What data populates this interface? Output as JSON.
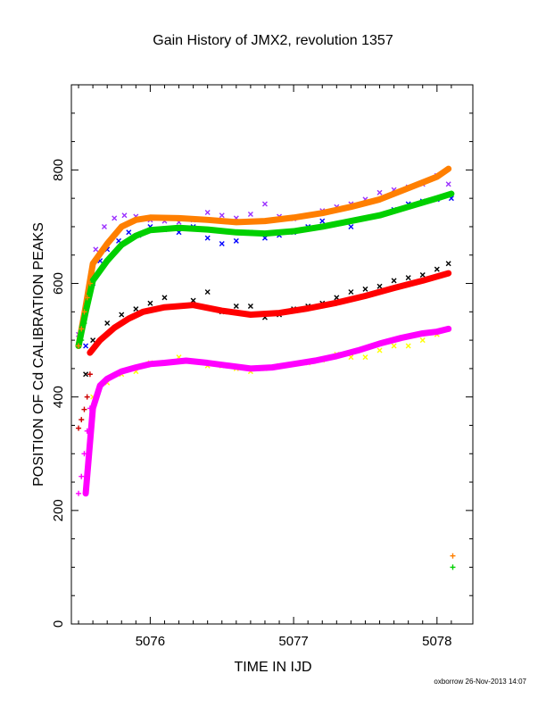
{
  "chart_data": {
    "type": "scatter",
    "title": "Gain History of JMX2, revolution 1357",
    "xlabel": "TIME IN IJD",
    "ylabel": "POSITION OF Cd CALIBRATION PEAKS",
    "xlim": [
      5075.45,
      5078.25
    ],
    "ylim": [
      0,
      950
    ],
    "xticks": [
      5076,
      5077,
      5078
    ],
    "yticks": [
      0,
      200,
      400,
      600,
      800
    ],
    "xtick_labels": [
      "5076",
      "5077",
      "5078"
    ],
    "ytick_labels": [
      "0",
      "200",
      "400",
      "600",
      "800"
    ],
    "grid": false,
    "legend": "none",
    "series": [
      {
        "color": "#9b30ff",
        "marker": "x",
        "x": [
          5075.5,
          5075.56,
          5075.62,
          5075.68,
          5075.75,
          5075.82,
          5075.9,
          5076.0,
          5076.1,
          5076.2,
          5076.3,
          5076.4,
          5076.5,
          5076.6,
          5076.7,
          5076.8,
          5076.9,
          5077.0,
          5077.1,
          5077.2,
          5077.3,
          5077.4,
          5077.5,
          5077.6,
          5077.7,
          5077.8,
          5077.9,
          5078.0,
          5078.08
        ],
        "y": [
          510,
          560,
          660,
          700,
          715,
          720,
          718,
          712,
          710,
          708,
          712,
          725,
          720,
          715,
          722,
          740,
          718,
          714,
          720,
          728,
          735,
          740,
          748,
          760,
          765,
          770,
          775,
          790,
          775
        ]
      },
      {
        "color": "#0000ff",
        "marker": "x",
        "x": [
          5075.55,
          5075.6,
          5075.65,
          5075.7,
          5075.78,
          5075.85,
          5075.92,
          5076.0,
          5076.1,
          5076.2,
          5076.3,
          5076.4,
          5076.5,
          5076.6,
          5076.7,
          5076.8,
          5076.9,
          5077.0,
          5077.1,
          5077.2,
          5077.3,
          5077.4,
          5077.5,
          5077.6,
          5077.7,
          5077.8,
          5077.9,
          5078.0,
          5078.1
        ],
        "y": [
          490,
          600,
          640,
          660,
          675,
          690,
          685,
          700,
          695,
          690,
          700,
          680,
          670,
          675,
          690,
          680,
          685,
          690,
          700,
          710,
          705,
          700,
          715,
          720,
          730,
          740,
          745,
          748,
          750
        ]
      },
      {
        "color": "#ff7f00",
        "marker": "line",
        "x": [
          5075.5,
          5075.55,
          5075.6,
          5075.7,
          5075.8,
          5075.9,
          5076.0,
          5076.2,
          5076.4,
          5076.6,
          5076.8,
          5077.0,
          5077.2,
          5077.4,
          5077.6,
          5077.8,
          5078.0,
          5078.08
        ],
        "y": [
          490,
          560,
          635,
          670,
          700,
          712,
          716,
          715,
          712,
          708,
          710,
          716,
          724,
          735,
          748,
          768,
          788,
          802
        ]
      },
      {
        "color": "#00d000",
        "marker": "line",
        "x": [
          5075.5,
          5075.55,
          5075.6,
          5075.7,
          5075.8,
          5075.9,
          5076.0,
          5076.2,
          5076.4,
          5076.6,
          5076.8,
          5077.0,
          5077.2,
          5077.4,
          5077.6,
          5077.8,
          5078.0,
          5078.1
        ],
        "y": [
          490,
          550,
          605,
          640,
          668,
          684,
          694,
          698,
          695,
          690,
          688,
          692,
          700,
          710,
          720,
          735,
          750,
          758
        ]
      },
      {
        "color": "#000000",
        "marker": "x",
        "x": [
          5075.55,
          5075.6,
          5075.7,
          5075.8,
          5075.9,
          5076.0,
          5076.1,
          5076.2,
          5076.3,
          5076.4,
          5076.5,
          5076.6,
          5076.7,
          5076.8,
          5076.9,
          5077.0,
          5077.1,
          5077.2,
          5077.3,
          5077.4,
          5077.5,
          5077.6,
          5077.7,
          5077.8,
          5077.9,
          5078.0,
          5078.08
        ],
        "y": [
          440,
          500,
          530,
          545,
          555,
          565,
          575,
          560,
          570,
          585,
          550,
          560,
          560,
          540,
          545,
          555,
          560,
          565,
          575,
          585,
          590,
          595,
          605,
          610,
          615,
          625,
          635
        ]
      },
      {
        "color": "#ff0000",
        "marker": "line",
        "x": [
          5075.58,
          5075.65,
          5075.75,
          5075.85,
          5075.95,
          5076.1,
          5076.3,
          5076.5,
          5076.7,
          5076.9,
          5077.1,
          5077.3,
          5077.5,
          5077.7,
          5077.9,
          5078.08
        ],
        "y": [
          478,
          500,
          522,
          538,
          550,
          558,
          562,
          552,
          545,
          548,
          556,
          566,
          578,
          592,
          605,
          618
        ]
      },
      {
        "color": "#ffff00",
        "marker": "x",
        "x": [
          5075.6,
          5075.7,
          5075.8,
          5075.9,
          5076.0,
          5076.1,
          5076.2,
          5076.3,
          5076.4,
          5076.5,
          5076.6,
          5076.7,
          5076.8,
          5076.9,
          5077.0,
          5077.1,
          5077.2,
          5077.3,
          5077.4,
          5077.5,
          5077.6,
          5077.7,
          5077.8,
          5077.9,
          5078.0,
          5078.08
        ],
        "y": [
          400,
          425,
          440,
          445,
          460,
          460,
          470,
          462,
          455,
          455,
          450,
          445,
          450,
          455,
          458,
          460,
          465,
          475,
          470,
          470,
          482,
          490,
          490,
          500,
          510,
          520
        ]
      },
      {
        "color": "#ff00ff",
        "marker": "line",
        "x": [
          5075.55,
          5075.6,
          5075.65,
          5075.7,
          5075.8,
          5075.9,
          5076.0,
          5076.1,
          5076.25,
          5076.4,
          5076.55,
          5076.7,
          5076.85,
          5077.0,
          5077.15,
          5077.3,
          5077.45,
          5077.6,
          5077.75,
          5077.9,
          5078.0,
          5078.08
        ],
        "y": [
          230,
          380,
          420,
          432,
          445,
          452,
          458,
          460,
          464,
          460,
          455,
          450,
          452,
          458,
          464,
          472,
          482,
          494,
          504,
          512,
          515,
          520
        ]
      },
      {
        "color": "#cc0000",
        "marker": "+",
        "x": [
          5075.5,
          5075.52,
          5075.54,
          5075.56,
          5075.58
        ],
        "y": [
          345,
          360,
          378,
          400,
          440
        ]
      },
      {
        "color": "#ff7f00",
        "marker": "+",
        "x": [
          5075.5,
          5075.52,
          5075.54,
          5075.56,
          5075.58,
          5078.11
        ],
        "y": [
          490,
          520,
          550,
          575,
          600,
          120
        ]
      },
      {
        "color": "#00d000",
        "marker": "+",
        "x": [
          5075.52,
          5075.54,
          5075.56,
          5078.11
        ],
        "y": [
          500,
          530,
          565,
          100
        ]
      },
      {
        "color": "#ff00ff",
        "marker": "+",
        "x": [
          5075.5,
          5075.52,
          5075.54,
          5075.56,
          5075.58
        ],
        "y": [
          230,
          260,
          300,
          340,
          380
        ]
      }
    ]
  },
  "footer": {
    "credit": "oxborrow 26-Nov-2013 14:07"
  }
}
